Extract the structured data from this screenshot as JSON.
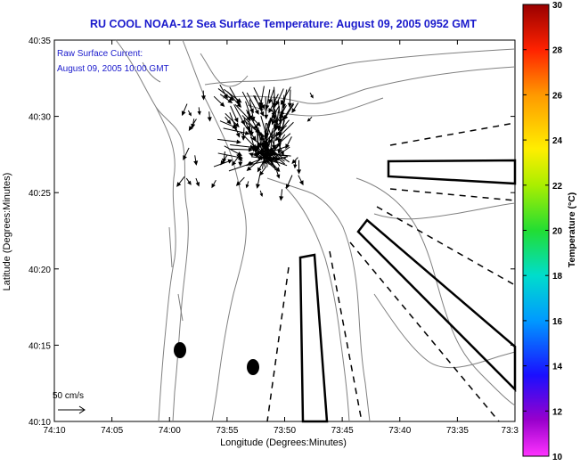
{
  "chart_data": {
    "type": "map",
    "title": "RU COOL  NOAA-12  Sea Surface Temperature:  August 09, 2005 0952 GMT",
    "annotation_line1": "Raw Surface Current:",
    "annotation_line2": "August 09, 2005 10:00 GMT",
    "xlabel": "Longitude (Degrees:Minutes)",
    "ylabel": "Latitude (Degrees:Minutes)",
    "x_ticks": [
      "74:10",
      "74:05",
      "74:00",
      "73:55",
      "73:50",
      "73:45",
      "73:40",
      "73:35",
      "73:3"
    ],
    "y_ticks": [
      "40:35",
      "40:30",
      "40:25",
      "40:20",
      "40:15",
      "40:10"
    ],
    "xlim": [
      -74.1667,
      -73.5
    ],
    "ylim": [
      40.1667,
      40.5833
    ],
    "scale_label": "50 cm/s",
    "colorbar": {
      "label": "Temperature (°C)",
      "min": 10,
      "max": 30,
      "ticks": [
        "30",
        "28",
        "26",
        "24",
        "22",
        "20",
        "18",
        "16",
        "14",
        "12",
        "10"
      ]
    },
    "markers": [
      {
        "name": "dot-1",
        "lon": -73.98,
        "lat": 40.245
      },
      {
        "name": "dot-2",
        "lon": -73.879,
        "lat": 40.223
      }
    ],
    "shipping_lanes": 3,
    "current_vectors_note": "dense cluster of surface current arrows near 40:27-40:32 N, 73:55-73:50 W"
  }
}
